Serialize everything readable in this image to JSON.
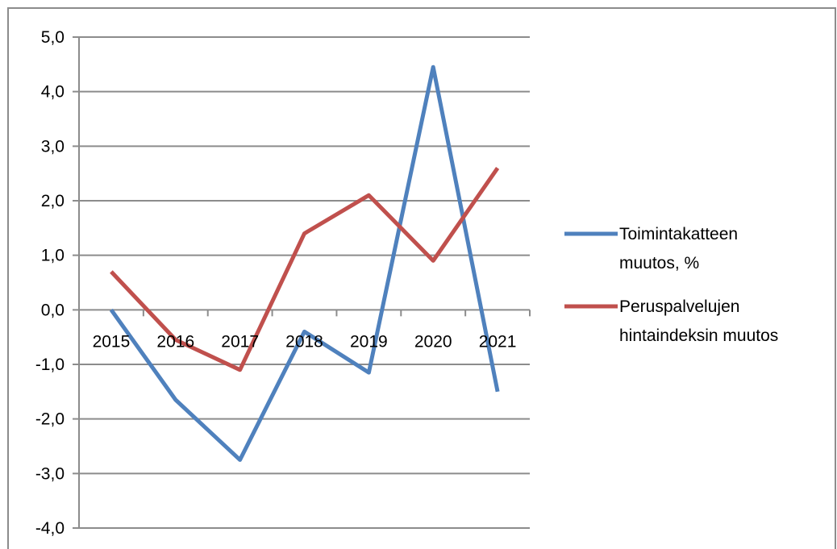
{
  "chart_data": {
    "type": "line",
    "categories": [
      "2015",
      "2016",
      "2017",
      "2018",
      "2019",
      "2020",
      "2021"
    ],
    "y_ticks": [
      "-4,0",
      "-3,0",
      "-2,0",
      "-1,0",
      "0,0",
      "1,0",
      "2,0",
      "3,0",
      "4,0",
      "5,0"
    ],
    "ylim": [
      -4,
      5
    ],
    "grid": true,
    "legend_position": "right",
    "series": [
      {
        "name_lines": [
          "Toimintakatteen",
          "muutos, %"
        ],
        "color": "#4f81bd",
        "values": [
          0.0,
          -1.65,
          -2.75,
          -0.4,
          -1.15,
          4.45,
          -1.5
        ]
      },
      {
        "name_lines": [
          "Peruspalvelujen",
          "hintaindeksin muutos"
        ],
        "color": "#c0504d",
        "values": [
          0.7,
          -0.55,
          -1.1,
          1.4,
          2.1,
          0.9,
          2.6
        ]
      }
    ]
  }
}
